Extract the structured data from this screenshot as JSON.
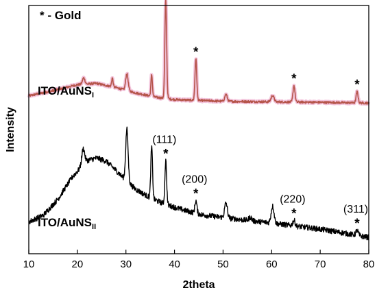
{
  "chart_data": {
    "type": "line",
    "title": "",
    "xlabel": "2theta",
    "ylabel": "Intensity",
    "xlim": [
      10,
      80
    ],
    "ylim": [
      0,
      100
    ],
    "xticks": [
      "10",
      "20",
      "30",
      "40",
      "50",
      "60",
      "70",
      "80"
    ],
    "yticks_shown": false,
    "grid": false,
    "legend": "none",
    "colors": {
      "series_1": "#b5554a",
      "series_1_halo": "#f3c4dc",
      "series_2": "#000000"
    },
    "gold_legend": {
      "marker": "*",
      "label": " - Gold"
    },
    "series": [
      {
        "label_main": "ITO/AuNS",
        "label_sub": "I",
        "color": "#b5554a",
        "baseline": [
          [
            10,
            63.6
          ],
          [
            15,
            65.7
          ],
          [
            20,
            68.1
          ],
          [
            24,
            68.6
          ],
          [
            28,
            66.9
          ],
          [
            32,
            64.8
          ],
          [
            36,
            63.1
          ],
          [
            40,
            62.1
          ],
          [
            50,
            61.4
          ],
          [
            60,
            61.2
          ],
          [
            70,
            61.0
          ],
          [
            80,
            60.7
          ]
        ],
        "peaks": [
          {
            "x": 21.3,
            "h": 2.6,
            "w": 0.25
          },
          {
            "x": 27.2,
            "h": 3.6,
            "w": 0.15
          },
          {
            "x": 30.2,
            "h": 6.8,
            "w": 0.25
          },
          {
            "x": 35.3,
            "h": 8.7,
            "w": 0.15
          },
          {
            "x": 38.2,
            "h": 39.5,
            "w": 0.18
          },
          {
            "x": 44.4,
            "h": 16.7,
            "w": 0.18
          },
          {
            "x": 50.6,
            "h": 2.8,
            "w": 0.25
          },
          {
            "x": 60.2,
            "h": 2.5,
            "w": 0.3
          },
          {
            "x": 64.6,
            "h": 6.6,
            "w": 0.2
          },
          {
            "x": 77.6,
            "h": 4.5,
            "w": 0.2
          }
        ],
        "stars_at": [
          38.2,
          44.4,
          64.6,
          77.6
        ]
      },
      {
        "label_main": "ITO/AuNS",
        "label_sub": "II",
        "color": "#000000",
        "baseline": [
          [
            10,
            12.8
          ],
          [
            13,
            15.5
          ],
          [
            16,
            22.0
          ],
          [
            19,
            31.0
          ],
          [
            22,
            37.5
          ],
          [
            24,
            38.6
          ],
          [
            26,
            37.2
          ],
          [
            28,
            33.5
          ],
          [
            30,
            29.5
          ],
          [
            32,
            26.0
          ],
          [
            35,
            22.5
          ],
          [
            38,
            20.0
          ],
          [
            42,
            17.5
          ],
          [
            46,
            15.6
          ],
          [
            50,
            14.6
          ],
          [
            55,
            13.4
          ],
          [
            60,
            12.4
          ],
          [
            65,
            11.1
          ],
          [
            70,
            9.9
          ],
          [
            75,
            8.3
          ],
          [
            78,
            7.2
          ],
          [
            80,
            6.6
          ]
        ],
        "peaks": [
          {
            "x": 21.2,
            "h": 6.5,
            "w": 0.3
          },
          {
            "x": 30.2,
            "h": 21.0,
            "w": 0.25
          },
          {
            "x": 35.3,
            "h": 20.8,
            "w": 0.18
          },
          {
            "x": 38.2,
            "h": 17.6,
            "w": 0.18
          },
          {
            "x": 44.4,
            "h": 5.0,
            "w": 0.2
          },
          {
            "x": 50.6,
            "h": 6.0,
            "w": 0.28
          },
          {
            "x": 55.6,
            "h": 1.4,
            "w": 0.3
          },
          {
            "x": 60.2,
            "h": 6.8,
            "w": 0.3
          },
          {
            "x": 64.6,
            "h": 2.2,
            "w": 0.25
          },
          {
            "x": 77.6,
            "h": 2.0,
            "w": 0.25
          }
        ],
        "stars_at": [
          38.2,
          44.4,
          64.6,
          77.6
        ]
      }
    ],
    "annotations": [
      {
        "text": "(111)",
        "x": 38.2
      },
      {
        "text": "(200)",
        "x": 44.4
      },
      {
        "text": "(220)",
        "x": 64.6
      },
      {
        "text": "(311)",
        "x": 77.6
      }
    ]
  }
}
